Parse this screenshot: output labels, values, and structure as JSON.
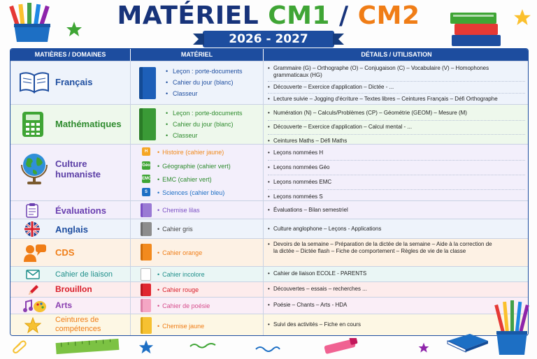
{
  "header": {
    "title_part1": "MATÉRIEL",
    "title_part2": "CM1",
    "title_sep": "/",
    "title_part3": "CM2",
    "year": "2026 - 2027"
  },
  "table": {
    "headers": [
      "MATIÈRES / DOMAINES",
      "MATÉRIEL",
      "DÉTAILS / UTILISATION"
    ],
    "rows": [
      {
        "subject": "Français",
        "color": "#1d4d9f",
        "bg": "#eef3fb",
        "materials": [
          "Leçon : porte-documents",
          "Cahier du jour (blanc)",
          "Classeur"
        ],
        "details": [
          "Grammaire (G) – Orthographe (O) – Conjugaison (C) – Vocabulaire (V) – Homophones grammaticaux (HG)",
          "Découverte – Exercice d'application – Dictée - ...",
          "Lecture suivie – Jogging d'écriture – Textes libres – Ceintures Français – Défi Orthographe"
        ]
      },
      {
        "subject": "Mathématiques",
        "color": "#2e8b2e",
        "bg": "#eef8ec",
        "materials": [
          "Leçon : porte-documents",
          "Cahier du jour (blanc)",
          "Classeur"
        ],
        "details": [
          "Numération (N) – Calculs/Problèmes (CP) – Géométrie (GEOM) – Mesure (M)",
          "Découverte – Exercice d'application – Calcul mental - ...",
          "Ceintures Maths – Défi Maths"
        ]
      },
      {
        "subject": "Culture humaniste",
        "color": "#5b3ea6",
        "bg": "#f3effb",
        "sub_materials": [
          {
            "badge": "H",
            "label": "Histoire",
            "note": "(cahier jaune)",
            "color": "#f08a1c",
            "badge_color": "#f5a623"
          },
          {
            "badge": "Géo",
            "label": "Géographie",
            "note": "(cahier vert)",
            "color": "#2e8b2e",
            "badge_color": "#3fa535"
          },
          {
            "badge": "EMC",
            "label": "EMC",
            "note": "(cahier vert)",
            "color": "#2e8b2e",
            "badge_color": "#3fa535"
          },
          {
            "badge": "S",
            "label": "Sciences",
            "note": "(cahier bleu)",
            "color": "#1d6fc4",
            "badge_color": "#1d6fc4"
          }
        ],
        "details": [
          "Leçons nommées H",
          "Leçons nommées Géo",
          "Leçons nommées EMC",
          "Leçons nommées S"
        ]
      },
      {
        "subject": "Évaluations",
        "color": "#6a3fb0",
        "bg": "#f3effb",
        "material": "Chemise lilas",
        "material_color": "#7b4fc4",
        "book_color": "#9a7ad4",
        "details": [
          "Évaluations – Bilan semestriel"
        ]
      },
      {
        "subject": "Anglais",
        "color": "#1d4d9f",
        "bg": "#eef3fb",
        "material": "Cahier gris",
        "material_color": "#444444",
        "book_color": "#8d8d8d",
        "details": [
          "Culture anglophone – Leçons - Applications"
        ]
      },
      {
        "subject": "CDS",
        "color": "#f07d16",
        "bg": "#fdf1e4",
        "material": "Cahier orange",
        "material_color": "#f07d16",
        "book_color": "#f28a1e",
        "details": [
          "Devoirs de la semaine – Préparation de la dictée de la semaine – Aide à la correction de la dictée – Dictée flash – Fiche de comportement – Règles de vie de la classe"
        ]
      },
      {
        "subject": "Cahier de liaison",
        "color": "#1f8f8a",
        "bg": "#eaf6f5",
        "material": "Cahier incolore",
        "material_color": "#1f8f8a",
        "book_color": "#ffffff",
        "details": [
          "Cahier de liaison ECOLE - PARENTS"
        ]
      },
      {
        "subject": "Brouillon",
        "color": "#d81e2a",
        "bg": "#fdecec",
        "material": "Cahier rouge",
        "material_color": "#d81e2a",
        "book_color": "#e0262f",
        "details": [
          "Découvertes – essais – recherches ..."
        ]
      },
      {
        "subject": "Arts",
        "color": "#8a3fb0",
        "bg": "#faeef7",
        "material": "Cahier de poésie",
        "material_color": "#d64b8a",
        "book_color": "#f4a6c4",
        "details": [
          "Poésie – Chants – Arts - HDA"
        ]
      },
      {
        "subject": "Ceintures de compétences",
        "color": "#f07d16",
        "bg": "#fdf7e4",
        "material": "Chemise jaune",
        "material_color": "#f07d16",
        "book_color": "#f6c132",
        "details": [
          "Suivi des activités – Fiche en cours"
        ]
      }
    ]
  },
  "icons": {
    "francais": "open-book-icon",
    "maths": "calculator-icon",
    "culture": "globe-icon",
    "evaluations": "clipboard-icon",
    "anglais": "uk-flag-icon",
    "cds": "person-speech-icon",
    "liaison": "envelope-icon",
    "brouillon": "pencil-icon",
    "arts": "music-palette-icon",
    "ceintures": "star-icon"
  }
}
